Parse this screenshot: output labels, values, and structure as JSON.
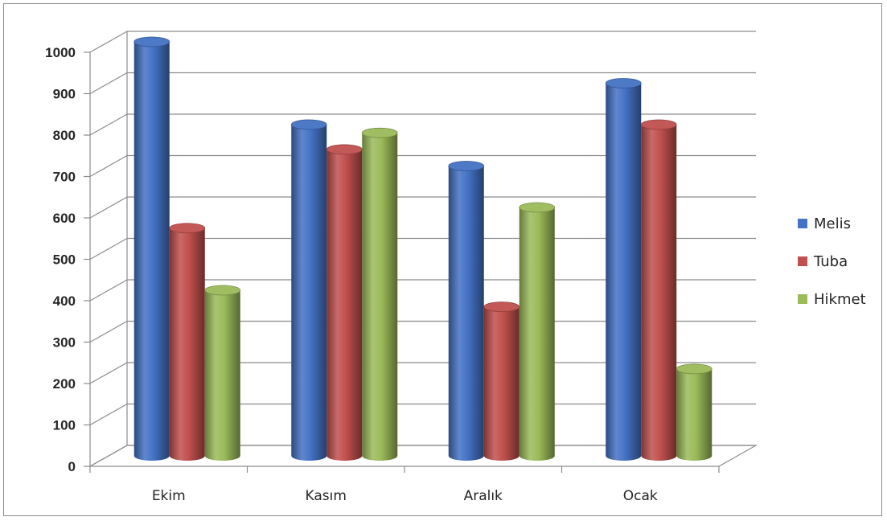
{
  "chart_data": {
    "type": "bar",
    "categories": [
      "Ekim",
      "Kasım",
      "Aralık",
      "Ocak"
    ],
    "series": [
      {
        "name": "Melis",
        "values": [
          1000,
          800,
          700,
          900
        ],
        "color": "#4472c4"
      },
      {
        "name": "Tuba",
        "values": [
          550,
          740,
          360,
          800
        ],
        "color": "#c0504d"
      },
      {
        "name": "Hikmet",
        "values": [
          400,
          780,
          600,
          210
        ],
        "color": "#9bbb59"
      }
    ],
    "ylim": [
      0,
      1000
    ],
    "yticks": [
      "0",
      "100",
      "200",
      "300",
      "400",
      "500",
      "600",
      "700",
      "800",
      "900",
      "1000"
    ],
    "grid": true,
    "legend_position": "right",
    "style": "3d-cylinder",
    "title": "",
    "xlabel": "",
    "ylabel": ""
  }
}
